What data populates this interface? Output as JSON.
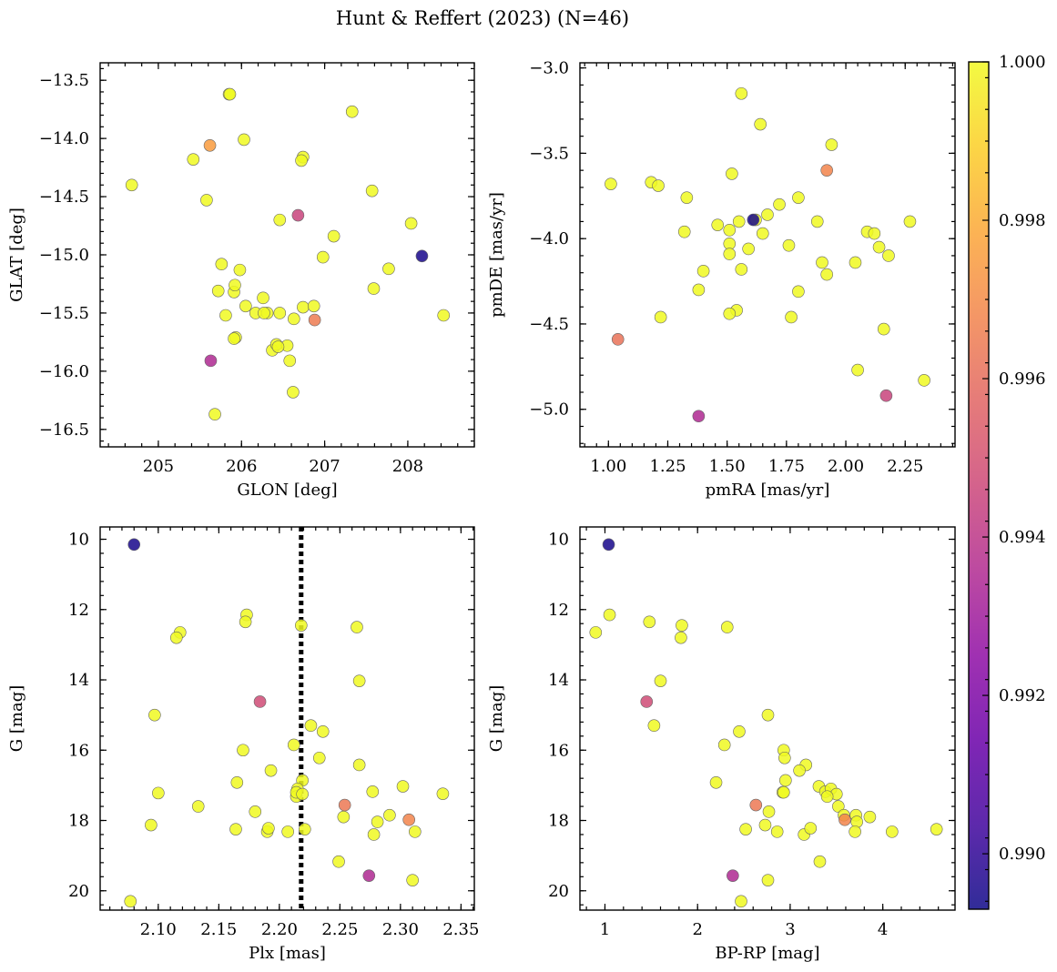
{
  "figure_title": "Hunt & Reffert (2023) (N=46)",
  "colorbar": {
    "colormap": "plasma",
    "range": [
      0.9893,
      1.0
    ],
    "ticks": [
      0.99,
      0.992,
      0.994,
      0.996,
      0.998,
      1.0
    ],
    "tick_labels": [
      "0.990",
      "0.992",
      "0.994",
      "0.996",
      "0.998",
      "1.000"
    ]
  },
  "chart_data": [
    {
      "type": "scatter",
      "id": "glon-glat",
      "xlabel": "GLON [deg]",
      "ylabel": "GLAT [deg]",
      "xlim": [
        204.3,
        208.8
      ],
      "ylim": [
        -16.65,
        -13.35
      ],
      "y_inverted": false,
      "xticks": [
        205,
        206,
        207,
        208
      ],
      "xtick_labels": [
        "205",
        "206",
        "207",
        "208"
      ],
      "yticks": [
        -16.5,
        -16.0,
        -15.5,
        -15.0,
        -14.5,
        -14.0,
        -13.5
      ],
      "ytick_labels": [
        "−16.5",
        "−16.0",
        "−15.5",
        "−15.0",
        "−14.5",
        "−14.0",
        "−13.5"
      ],
      "x": [
        204.68,
        205.42,
        205.62,
        205.58,
        205.85,
        205.86,
        206.03,
        207.33,
        206.74,
        206.72,
        207.57,
        206.46,
        206.68,
        208.04,
        208.17,
        207.11,
        206.98,
        205.76,
        205.98,
        207.77,
        205.72,
        205.91,
        207.59,
        206.17,
        205.92,
        205.81,
        206.05,
        206.26,
        206.31,
        206.46,
        206.63,
        206.88,
        206.74,
        206.87,
        205.63,
        205.93,
        205.91,
        206.37,
        206.42,
        206.55,
        206.44,
        206.58,
        205.68,
        206.62,
        208.43,
        206.27
      ],
      "y": [
        -14.4,
        -14.18,
        -14.06,
        -14.53,
        -13.62,
        -13.62,
        -14.01,
        -13.77,
        -14.16,
        -14.19,
        -14.45,
        -14.7,
        -14.66,
        -14.73,
        -15.01,
        -14.84,
        -15.02,
        -15.08,
        -15.13,
        -15.12,
        -15.31,
        -15.32,
        -15.29,
        -15.5,
        -15.26,
        -15.52,
        -15.44,
        -15.37,
        -15.5,
        -15.5,
        -15.55,
        -15.56,
        -15.45,
        -15.44,
        -15.91,
        -15.71,
        -15.72,
        -15.82,
        -15.77,
        -15.78,
        -15.79,
        -15.91,
        -16.37,
        -16.18,
        -15.52,
        -15.5
      ],
      "c": [
        1.0,
        1.0,
        0.9975,
        1.0,
        1.0,
        1.0,
        1.0,
        1.0,
        1.0,
        1.0,
        1.0,
        1.0,
        0.9945,
        1.0,
        0.9895,
        1.0,
        1.0,
        1.0,
        1.0,
        1.0,
        1.0,
        1.0,
        1.0,
        1.0,
        1.0,
        1.0,
        1.0,
        1.0,
        1.0,
        1.0,
        1.0,
        0.9965,
        1.0,
        1.0,
        0.9935,
        1.0,
        1.0,
        1.0,
        1.0,
        1.0,
        1.0,
        1.0,
        1.0,
        1.0,
        1.0,
        1.0
      ]
    },
    {
      "type": "scatter",
      "id": "pmra-pmde",
      "xlabel": "pmRA [mas/yr]",
      "ylabel": "pmDE [mas/yr]",
      "xlim": [
        0.88,
        2.46
      ],
      "ylim": [
        -5.22,
        -2.97
      ],
      "y_inverted": false,
      "xticks": [
        1.0,
        1.25,
        1.5,
        1.75,
        2.0,
        2.25
      ],
      "xtick_labels": [
        "1.00",
        "1.25",
        "1.50",
        "1.75",
        "2.00",
        "2.25"
      ],
      "yticks": [
        -5.0,
        -4.5,
        -4.0,
        -3.5,
        -3.0
      ],
      "ytick_labels": [
        "−5.0",
        "−4.5",
        "−4.0",
        "−3.5",
        "−3.0"
      ],
      "x": [
        1.56,
        1.64,
        1.94,
        1.92,
        1.52,
        1.01,
        1.18,
        1.21,
        1.33,
        1.46,
        1.51,
        1.61,
        1.62,
        1.67,
        1.72,
        1.8,
        1.88,
        1.32,
        1.51,
        1.51,
        1.59,
        1.65,
        2.09,
        2.12,
        2.14,
        2.18,
        2.04,
        1.9,
        1.92,
        1.8,
        1.4,
        1.56,
        1.76,
        1.77,
        1.54,
        1.51,
        1.22,
        1.04,
        2.16,
        2.05,
        2.33,
        2.17,
        1.38,
        1.38,
        2.27,
        1.55
      ],
      "y": [
        -3.15,
        -3.33,
        -3.45,
        -3.6,
        -3.62,
        -3.68,
        -3.67,
        -3.69,
        -3.76,
        -3.92,
        -3.95,
        -3.89,
        -3.89,
        -3.86,
        -3.8,
        -3.76,
        -3.9,
        -3.96,
        -4.03,
        -4.09,
        -4.06,
        -3.97,
        -3.96,
        -3.97,
        -4.05,
        -4.1,
        -4.14,
        -4.14,
        -4.21,
        -4.31,
        -4.19,
        -4.18,
        -4.04,
        -4.46,
        -4.42,
        -4.44,
        -4.46,
        -4.59,
        -4.53,
        -4.77,
        -4.83,
        -4.92,
        -5.04,
        -4.3,
        -3.9,
        -3.9
      ],
      "c": [
        1.0,
        1.0,
        1.0,
        0.9968,
        1.0,
        1.0,
        1.0,
        1.0,
        1.0,
        1.0,
        1.0,
        0.9895,
        1.0,
        1.0,
        1.0,
        1.0,
        1.0,
        1.0,
        1.0,
        1.0,
        1.0,
        1.0,
        1.0,
        1.0,
        1.0,
        1.0,
        1.0,
        1.0,
        1.0,
        1.0,
        1.0,
        1.0,
        1.0,
        1.0,
        1.0,
        1.0,
        1.0,
        0.9962,
        1.0,
        1.0,
        1.0,
        0.9945,
        0.9935,
        1.0,
        1.0,
        1.0
      ]
    },
    {
      "type": "scatter",
      "id": "plx-g",
      "xlabel": "Plx [mas]",
      "ylabel": "G [mag]",
      "xlim": [
        2.052,
        2.361
      ],
      "ylim": [
        20.55,
        9.65
      ],
      "y_inverted": true,
      "xticks": [
        2.1,
        2.15,
        2.2,
        2.25,
        2.3,
        2.35
      ],
      "xtick_labels": [
        "2.10",
        "2.15",
        "2.20",
        "2.25",
        "2.30",
        "2.35"
      ],
      "yticks": [
        10,
        12,
        14,
        16,
        18,
        20
      ],
      "ytick_labels": [
        "10",
        "12",
        "14",
        "16",
        "18",
        "20"
      ],
      "vline": {
        "x": 2.218,
        "style": "dotted"
      },
      "x": [
        2.08,
        2.173,
        2.172,
        2.118,
        2.115,
        2.218,
        2.264,
        2.266,
        2.184,
        2.097,
        2.226,
        2.236,
        2.212,
        2.17,
        2.233,
        2.266,
        2.193,
        2.165,
        2.219,
        2.215,
        2.214,
        2.1,
        2.133,
        2.302,
        2.277,
        2.254,
        2.291,
        2.253,
        2.307,
        2.18,
        2.094,
        2.281,
        2.164,
        2.19,
        2.191,
        2.207,
        2.221,
        2.278,
        2.312,
        2.249,
        2.274,
        2.31,
        2.077,
        2.335,
        2.214,
        2.219
      ],
      "y": [
        10.15,
        12.15,
        12.35,
        12.65,
        12.8,
        12.45,
        12.5,
        14.03,
        14.62,
        15.0,
        15.3,
        15.47,
        15.85,
        16.0,
        16.22,
        16.42,
        16.58,
        16.92,
        16.86,
        17.1,
        17.32,
        17.22,
        17.6,
        17.03,
        17.18,
        17.56,
        17.85,
        17.9,
        17.98,
        17.75,
        18.13,
        18.04,
        18.25,
        18.32,
        18.22,
        18.32,
        18.25,
        18.4,
        18.32,
        19.17,
        19.57,
        19.7,
        20.3,
        17.24,
        17.2,
        17.25
      ],
      "c": [
        0.9895,
        1.0,
        1.0,
        1.0,
        1.0,
        1.0,
        1.0,
        1.0,
        0.9948,
        1.0,
        1.0,
        1.0,
        1.0,
        1.0,
        1.0,
        1.0,
        1.0,
        1.0,
        1.0,
        1.0,
        1.0,
        1.0,
        1.0,
        1.0,
        1.0,
        0.9964,
        1.0,
        1.0,
        0.9968,
        1.0,
        1.0,
        1.0,
        1.0,
        1.0,
        1.0,
        1.0,
        1.0,
        1.0,
        1.0,
        1.0,
        0.9935,
        1.0,
        1.0,
        1.0,
        1.0,
        1.0
      ]
    },
    {
      "type": "scatter",
      "id": "bprp-g",
      "xlabel": "BP-RP [mag]",
      "ylabel": "G [mag]",
      "xlim": [
        0.73,
        4.78
      ],
      "ylim": [
        20.55,
        9.65
      ],
      "y_inverted": true,
      "xticks": [
        1,
        2,
        3,
        4
      ],
      "xtick_labels": [
        "1",
        "2",
        "3",
        "4"
      ],
      "yticks": [
        10,
        12,
        14,
        16,
        18,
        20
      ],
      "ytick_labels": [
        "10",
        "12",
        "14",
        "16",
        "18",
        "20"
      ],
      "x": [
        1.04,
        0.9,
        1.05,
        1.48,
        1.83,
        1.82,
        2.32,
        1.6,
        1.45,
        1.53,
        2.76,
        2.45,
        2.29,
        2.93,
        2.94,
        3.17,
        3.1,
        2.95,
        2.2,
        2.92,
        3.31,
        3.38,
        3.44,
        3.5,
        3.52,
        2.63,
        2.77,
        3.71,
        3.59,
        3.72,
        3.86,
        2.73,
        2.52,
        2.86,
        3.15,
        3.22,
        3.7,
        4.1,
        4.58,
        3.32,
        2.38,
        2.76,
        2.47,
        2.93,
        3.4,
        3.58
      ],
      "y": [
        10.15,
        12.65,
        12.15,
        12.35,
        12.45,
        12.8,
        12.5,
        14.03,
        14.62,
        15.3,
        15.0,
        15.47,
        15.85,
        16.0,
        16.22,
        16.42,
        16.58,
        16.86,
        16.92,
        17.2,
        17.03,
        17.18,
        17.1,
        17.25,
        17.6,
        17.56,
        17.75,
        17.85,
        17.98,
        18.04,
        17.9,
        18.13,
        18.25,
        18.32,
        18.4,
        18.22,
        18.32,
        18.32,
        18.25,
        19.17,
        19.57,
        19.7,
        20.3,
        17.2,
        17.32,
        17.85
      ],
      "c": [
        0.9895,
        1.0,
        1.0,
        1.0,
        1.0,
        1.0,
        1.0,
        1.0,
        0.9948,
        1.0,
        1.0,
        1.0,
        1.0,
        1.0,
        1.0,
        1.0,
        1.0,
        1.0,
        1.0,
        1.0,
        1.0,
        1.0,
        1.0,
        1.0,
        1.0,
        0.9964,
        1.0,
        1.0,
        0.9968,
        1.0,
        1.0,
        1.0,
        1.0,
        1.0,
        1.0,
        1.0,
        1.0,
        1.0,
        1.0,
        1.0,
        0.9935,
        1.0,
        1.0,
        1.0,
        1.0,
        1.0
      ]
    }
  ]
}
